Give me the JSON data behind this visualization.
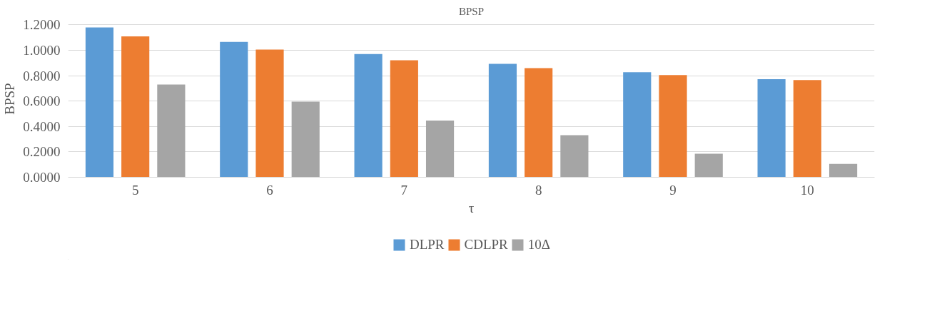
{
  "chart_data": {
    "type": "bar",
    "title": "BPSP",
    "xlabel": "τ",
    "ylabel": "BPSP",
    "categories": [
      "5",
      "6",
      "7",
      "8",
      "9",
      "10"
    ],
    "series": [
      {
        "name": "DLPR",
        "color": "#5b9bd5",
        "values": [
          1.18,
          1.066,
          0.971,
          0.893,
          0.827,
          0.773
        ]
      },
      {
        "name": "CDLPR",
        "color": "#ed7d31",
        "values": [
          1.11,
          1.005,
          0.922,
          0.859,
          0.805,
          0.766
        ]
      },
      {
        "name": "10Δ",
        "color": "#a5a5a5",
        "values": [
          0.73,
          0.595,
          0.446,
          0.332,
          0.185,
          0.105
        ]
      }
    ],
    "ylim": [
      0,
      1.2
    ],
    "yticks": [
      {
        "value": 0,
        "label": "0.0000"
      },
      {
        "value": 0.2,
        "label": "0.2000"
      },
      {
        "value": 0.4,
        "label": "0.4000"
      },
      {
        "value": 0.6,
        "label": "0.6000"
      },
      {
        "value": 0.8,
        "label": "0.8000"
      },
      {
        "value": 1.0,
        "label": "1.0000"
      },
      {
        "value": 1.2,
        "label": "1.2000"
      }
    ],
    "grid": "y",
    "legend": "bottom"
  }
}
